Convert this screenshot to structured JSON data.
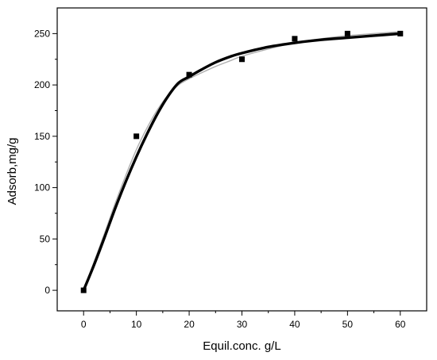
{
  "chart_data": {
    "type": "scatter",
    "title": "",
    "xlabel": "Equil.conc. g/L",
    "ylabel": "Adsorb,mg/g",
    "xlim": [
      -5,
      65
    ],
    "ylim": [
      -20,
      275
    ],
    "x_ticks": [
      0,
      10,
      20,
      30,
      40,
      50,
      60
    ],
    "y_ticks": [
      0,
      50,
      100,
      150,
      200,
      250
    ],
    "grid": false,
    "legend": "none",
    "series": [
      {
        "kind": "points",
        "x": [
          0,
          10,
          20,
          30,
          40,
          50,
          60
        ],
        "y": [
          0,
          150,
          210,
          225,
          245,
          250,
          250
        ],
        "color": "#000000",
        "marker": "square"
      },
      {
        "kind": "fit-bold",
        "x": [
          0,
          2,
          4,
          6,
          8,
          10,
          12,
          14,
          16,
          18,
          20,
          22,
          25,
          28,
          30,
          35,
          40,
          45,
          50,
          55,
          60
        ],
        "y": [
          0,
          25,
          52,
          80,
          106,
          130,
          152,
          172,
          189,
          202,
          208,
          214,
          222,
          228,
          231,
          237,
          241,
          244,
          246,
          248,
          250
        ],
        "color": "#000000"
      },
      {
        "kind": "fit-thin",
        "x": [
          0,
          2,
          4,
          6,
          8,
          10,
          12,
          14,
          16,
          18,
          20,
          22,
          25,
          28,
          30,
          35,
          40,
          45,
          50,
          55,
          60
        ],
        "y": [
          0,
          28,
          56,
          85,
          112,
          137,
          158,
          176,
          190,
          200,
          206,
          211,
          218,
          224,
          228,
          235,
          241,
          245,
          248,
          250,
          252
        ],
        "color": "#b0b0b0"
      }
    ]
  }
}
